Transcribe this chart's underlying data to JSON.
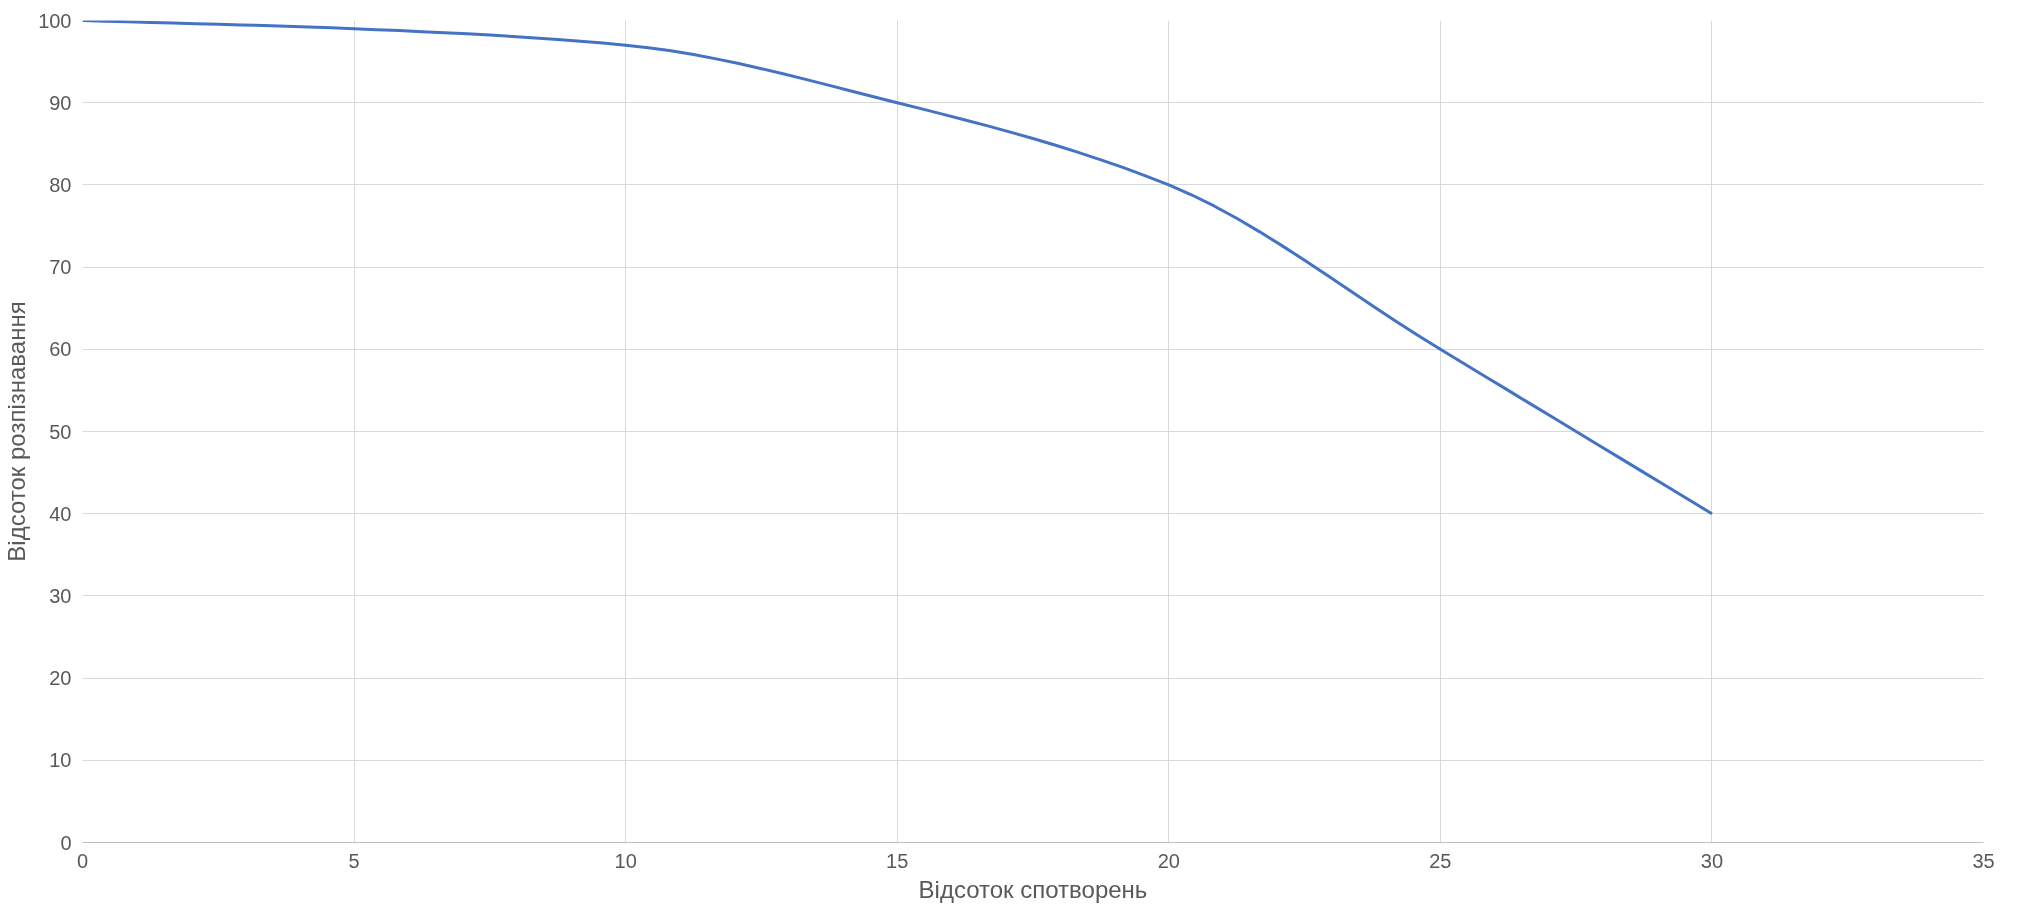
{
  "chart_data": {
    "type": "line",
    "xlabel": "Відсоток спотворень",
    "ylabel": "Відсоток розпізнавання",
    "x": [
      0,
      5,
      10,
      15,
      20,
      25,
      30
    ],
    "series": [
      {
        "color": "#4472c4",
        "values": [
          100,
          99,
          97,
          90,
          80,
          60,
          40
        ]
      }
    ],
    "xlim": [
      0,
      35
    ],
    "xticks": [
      0,
      5,
      10,
      15,
      20,
      25,
      30,
      35
    ],
    "ylim": [
      0,
      100
    ],
    "yticks": [
      0,
      10,
      20,
      30,
      40,
      50,
      60,
      70,
      80,
      90,
      100
    ],
    "grid": true,
    "marker": "none",
    "line_style": "solid"
  }
}
